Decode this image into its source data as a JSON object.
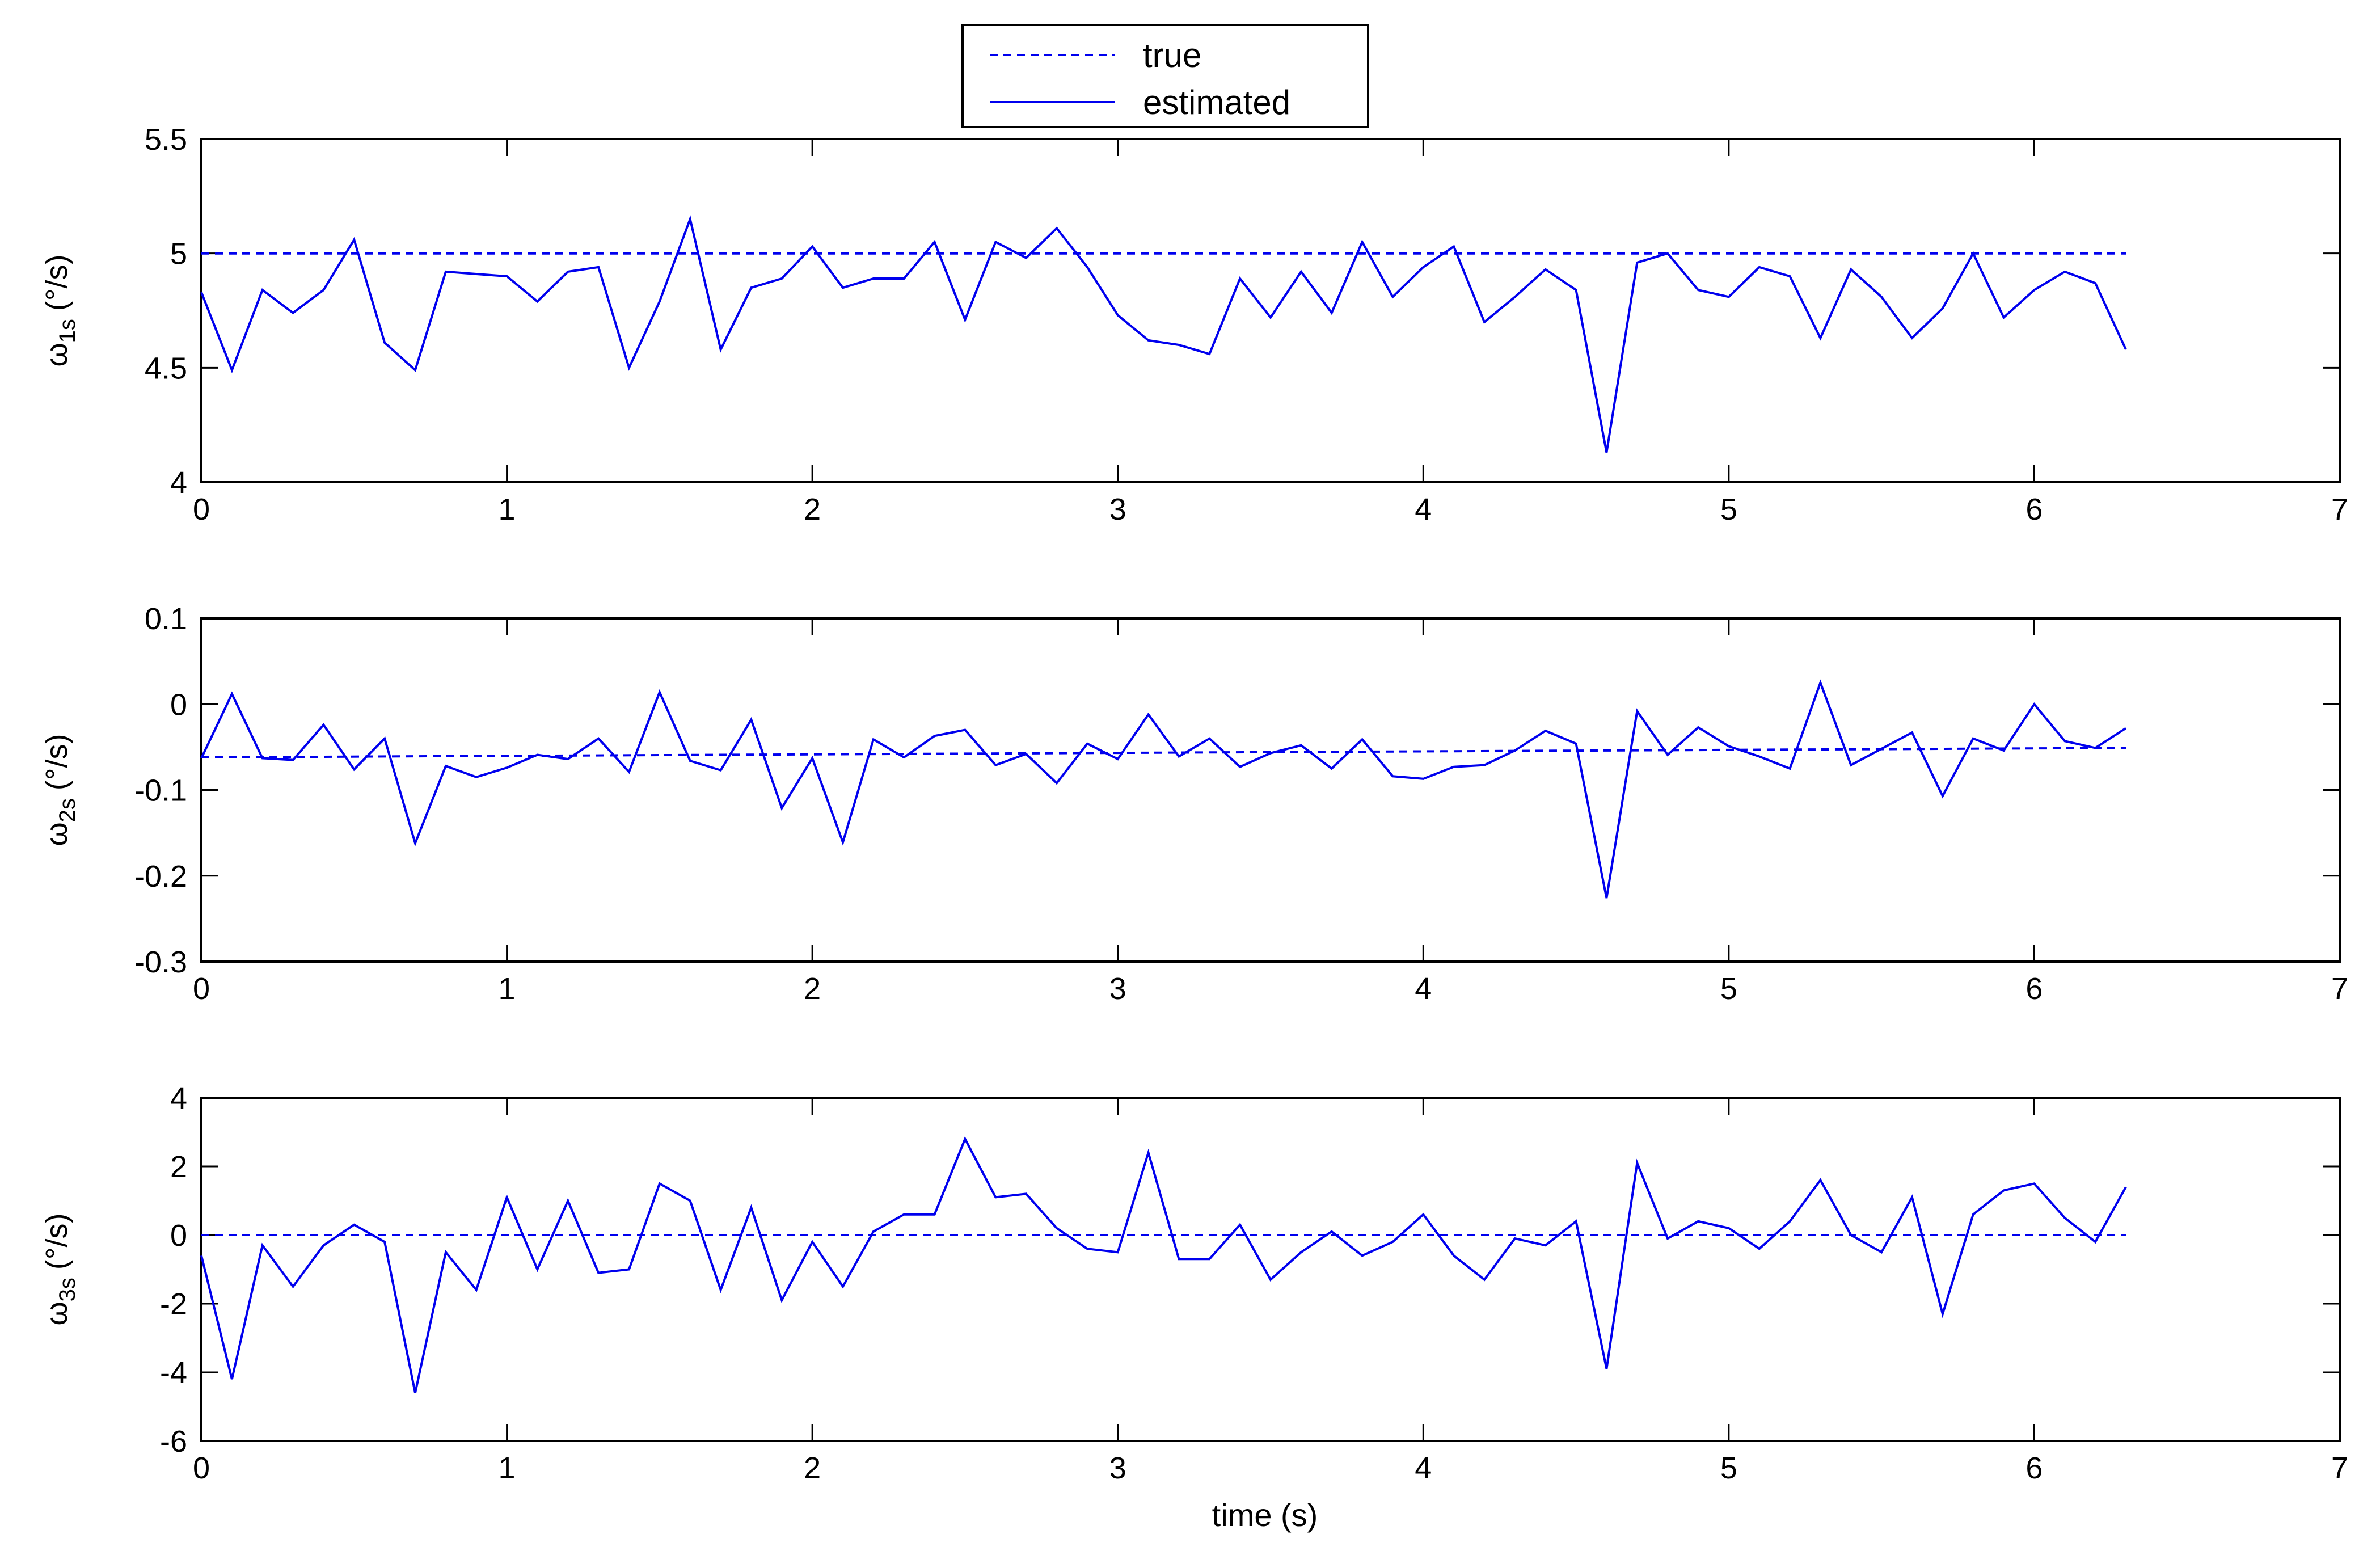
{
  "chart_data": [
    {
      "type": "line",
      "ylabel": {
        "symbol": "ω",
        "subscript": "1s",
        "unit": "(°/s)"
      },
      "xlabel": "",
      "xlim": [
        0,
        7
      ],
      "ylim": [
        4,
        5.5
      ],
      "xticks": [
        0,
        1,
        2,
        3,
        4,
        5,
        6,
        7
      ],
      "yticks": [
        "4",
        "4.5",
        "5",
        "5.5"
      ],
      "ytick_values": [
        4,
        4.5,
        5,
        5.5
      ],
      "grid": false,
      "series": [
        {
          "name": "true",
          "style": "dashed",
          "color": "#0000ee",
          "x": [
            0,
            6.3
          ],
          "y": [
            5,
            5
          ]
        },
        {
          "name": "estimated",
          "style": "solid",
          "color": "#0000ee",
          "x": [
            0,
            0.1,
            0.2,
            0.3,
            0.4,
            0.5,
            0.6,
            0.7,
            0.8,
            0.9,
            1.0,
            1.1,
            1.2,
            1.3,
            1.4,
            1.5,
            1.6,
            1.7,
            1.8,
            1.9,
            2.0,
            2.1,
            2.2,
            2.3,
            2.4,
            2.5,
            2.6,
            2.7,
            2.8,
            2.9,
            3.0,
            3.1,
            3.2,
            3.3,
            3.4,
            3.5,
            3.6,
            3.7,
            3.8,
            3.9,
            4.0,
            4.1,
            4.2,
            4.3,
            4.4,
            4.5,
            4.6,
            4.7,
            4.8,
            4.9,
            5.0,
            5.1,
            5.2,
            5.3,
            5.4,
            5.5,
            5.6,
            5.7,
            5.8,
            5.9,
            6.0,
            6.1,
            6.2,
            6.3
          ],
          "y": [
            4.83,
            4.49,
            4.84,
            4.74,
            4.84,
            5.06,
            4.61,
            4.49,
            4.92,
            4.91,
            4.9,
            4.79,
            4.92,
            4.94,
            4.5,
            4.79,
            5.15,
            4.58,
            4.85,
            4.89,
            5.03,
            4.85,
            4.89,
            4.89,
            5.05,
            4.71,
            5.05,
            4.98,
            5.11,
            4.94,
            4.73,
            4.62,
            4.6,
            4.56,
            4.89,
            4.72,
            4.92,
            4.74,
            5.05,
            4.81,
            4.94,
            5.03,
            4.7,
            4.81,
            4.93,
            4.84,
            4.13,
            4.96,
            5.0,
            4.84,
            4.81,
            4.94,
            4.9,
            4.63,
            4.93,
            4.81,
            4.63,
            4.76,
            5.0,
            4.72,
            4.84,
            4.92,
            4.87,
            4.58
          ]
        }
      ]
    },
    {
      "type": "line",
      "ylabel": {
        "symbol": "ω",
        "subscript": "2s",
        "unit": "(°/s)"
      },
      "xlabel": "",
      "xlim": [
        0,
        7
      ],
      "ylim": [
        -0.3,
        0.1
      ],
      "xticks": [
        0,
        1,
        2,
        3,
        4,
        5,
        6,
        7
      ],
      "yticks": [
        "-0.3",
        "-0.2",
        "-0.1",
        "0",
        "0.1"
      ],
      "ytick_values": [
        -0.3,
        -0.2,
        -0.1,
        0,
        0.1
      ],
      "grid": false,
      "series": [
        {
          "name": "true",
          "style": "dashed",
          "color": "#0000ee",
          "x": [
            0,
            6.3
          ],
          "y": [
            -0.062,
            -0.051
          ]
        },
        {
          "name": "estimated",
          "style": "solid",
          "color": "#0000ee",
          "x": [
            0,
            0.1,
            0.2,
            0.3,
            0.4,
            0.5,
            0.6,
            0.7,
            0.8,
            0.9,
            1.0,
            1.1,
            1.2,
            1.3,
            1.4,
            1.5,
            1.6,
            1.7,
            1.8,
            1.9,
            2.0,
            2.1,
            2.2,
            2.3,
            2.4,
            2.5,
            2.6,
            2.7,
            2.8,
            2.9,
            3.0,
            3.1,
            3.2,
            3.3,
            3.4,
            3.5,
            3.6,
            3.7,
            3.8,
            3.9,
            4.0,
            4.1,
            4.2,
            4.3,
            4.4,
            4.5,
            4.6,
            4.7,
            4.8,
            4.9,
            5.0,
            5.1,
            5.2,
            5.3,
            5.4,
            5.5,
            5.6,
            5.7,
            5.8,
            5.9,
            6.0,
            6.1,
            6.2,
            6.3
          ],
          "y": [
            -0.063,
            0.012,
            -0.063,
            -0.065,
            -0.024,
            -0.076,
            -0.04,
            -0.162,
            -0.072,
            -0.085,
            -0.074,
            -0.059,
            -0.064,
            -0.04,
            -0.079,
            0.014,
            -0.066,
            -0.077,
            -0.018,
            -0.121,
            -0.063,
            -0.161,
            -0.041,
            -0.062,
            -0.037,
            -0.03,
            -0.071,
            -0.058,
            -0.092,
            -0.046,
            -0.064,
            -0.012,
            -0.061,
            -0.04,
            -0.073,
            -0.057,
            -0.048,
            -0.075,
            -0.041,
            -0.084,
            -0.087,
            -0.073,
            -0.071,
            -0.054,
            -0.031,
            -0.046,
            -0.226,
            -0.008,
            -0.059,
            -0.027,
            -0.049,
            -0.061,
            -0.075,
            0.025,
            -0.071,
            -0.052,
            -0.033,
            -0.107,
            -0.04,
            -0.054,
            0.0,
            -0.043,
            -0.051,
            -0.028
          ]
        }
      ]
    },
    {
      "type": "line",
      "ylabel": {
        "symbol": "ω",
        "subscript": "3s",
        "unit": "(°/s)"
      },
      "xlabel": "time (s)",
      "xlim": [
        0,
        7
      ],
      "ylim": [
        -6,
        4
      ],
      "xticks": [
        0,
        1,
        2,
        3,
        4,
        5,
        6,
        7
      ],
      "yticks": [
        "-6",
        "-4",
        "-2",
        "0",
        "2",
        "4"
      ],
      "ytick_values": [
        -6,
        -4,
        -2,
        0,
        2,
        4
      ],
      "grid": false,
      "series": [
        {
          "name": "true",
          "style": "dashed",
          "color": "#0000ee",
          "x": [
            0,
            6.3
          ],
          "y": [
            0,
            0
          ]
        },
        {
          "name": "estimated",
          "style": "solid",
          "color": "#0000ee",
          "x": [
            0,
            0.1,
            0.2,
            0.3,
            0.4,
            0.5,
            0.6,
            0.7,
            0.8,
            0.9,
            1.0,
            1.1,
            1.2,
            1.3,
            1.4,
            1.5,
            1.6,
            1.7,
            1.8,
            1.9,
            2.0,
            2.1,
            2.2,
            2.3,
            2.4,
            2.5,
            2.6,
            2.7,
            2.8,
            2.9,
            3.0,
            3.1,
            3.2,
            3.3,
            3.4,
            3.5,
            3.6,
            3.7,
            3.8,
            3.9,
            4.0,
            4.1,
            4.2,
            4.3,
            4.4,
            4.5,
            4.6,
            4.7,
            4.8,
            4.9,
            5.0,
            5.1,
            5.2,
            5.3,
            5.4,
            5.5,
            5.6,
            5.7,
            5.8,
            5.9,
            6.0,
            6.1,
            6.2,
            6.3
          ],
          "y": [
            -0.6,
            -4.2,
            -0.3,
            -1.5,
            -0.3,
            0.3,
            -0.2,
            -4.6,
            -0.5,
            -1.6,
            1.1,
            -1.0,
            1.0,
            -1.1,
            -1.0,
            1.5,
            1.0,
            -1.6,
            0.8,
            -1.9,
            -0.2,
            -1.5,
            0.1,
            0.6,
            0.6,
            2.8,
            1.1,
            1.2,
            0.2,
            -0.4,
            -0.5,
            2.4,
            -0.7,
            -0.7,
            0.3,
            -1.3,
            -0.5,
            0.1,
            -0.6,
            -0.2,
            0.6,
            -0.6,
            -1.3,
            -0.1,
            -0.3,
            0.4,
            -3.9,
            2.1,
            -0.1,
            0.4,
            0.2,
            -0.4,
            0.4,
            1.6,
            0.0,
            -0.5,
            1.1,
            -2.3,
            0.6,
            1.3,
            1.5,
            0.5,
            -0.2,
            1.4
          ]
        }
      ]
    }
  ],
  "legend": {
    "placement": "top-center",
    "entries": [
      {
        "label": "true",
        "style": "dashed"
      },
      {
        "label": "estimated",
        "style": "solid"
      }
    ]
  }
}
